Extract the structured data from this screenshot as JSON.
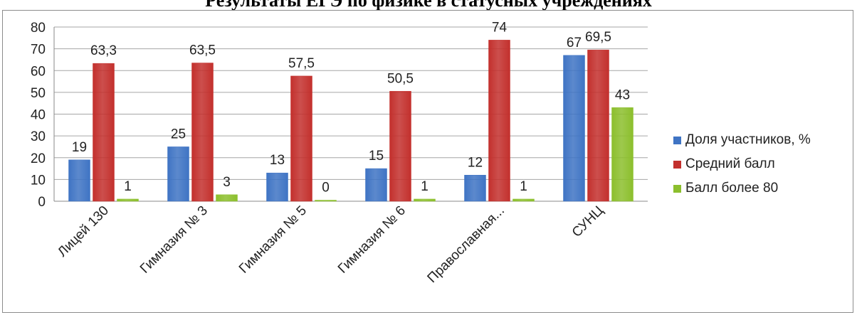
{
  "title": "Результаты ЕГЭ по физике в статусных учреждениях",
  "chart_data": {
    "type": "bar",
    "title": "Результаты ЕГЭ по физике в статусных учреждениях",
    "categories": [
      "Лицей 130",
      "Гимназия № 3",
      "Гимназия № 5",
      "Гимназия № 6",
      "Православная...",
      "СУНЦ"
    ],
    "series": [
      {
        "name": "Доля участников, %",
        "color": "#3f74c4",
        "values": [
          19,
          25,
          13,
          15,
          12,
          67
        ],
        "labels": [
          "19",
          "25",
          "13",
          "15",
          "12",
          "67"
        ]
      },
      {
        "name": "Средний балл",
        "color": "#c3302d",
        "values": [
          63.3,
          63.5,
          57.5,
          50.5,
          74,
          69.5
        ],
        "labels": [
          "63,3",
          "63,5",
          "57,5",
          "50,5",
          "74",
          "69,5"
        ]
      },
      {
        "name": "Балл более 80",
        "color": "#8cbf2d",
        "values": [
          1,
          3,
          0,
          1,
          1,
          43
        ],
        "labels": [
          "1",
          "3",
          "0",
          "1",
          "1",
          "43"
        ]
      }
    ],
    "yticks": [
      "0",
      "10",
      "20",
      "30",
      "40",
      "50",
      "60",
      "70",
      "80"
    ],
    "ylim": [
      0,
      80
    ],
    "grid": true,
    "legend_position": "right",
    "xlabel": "",
    "ylabel": ""
  }
}
